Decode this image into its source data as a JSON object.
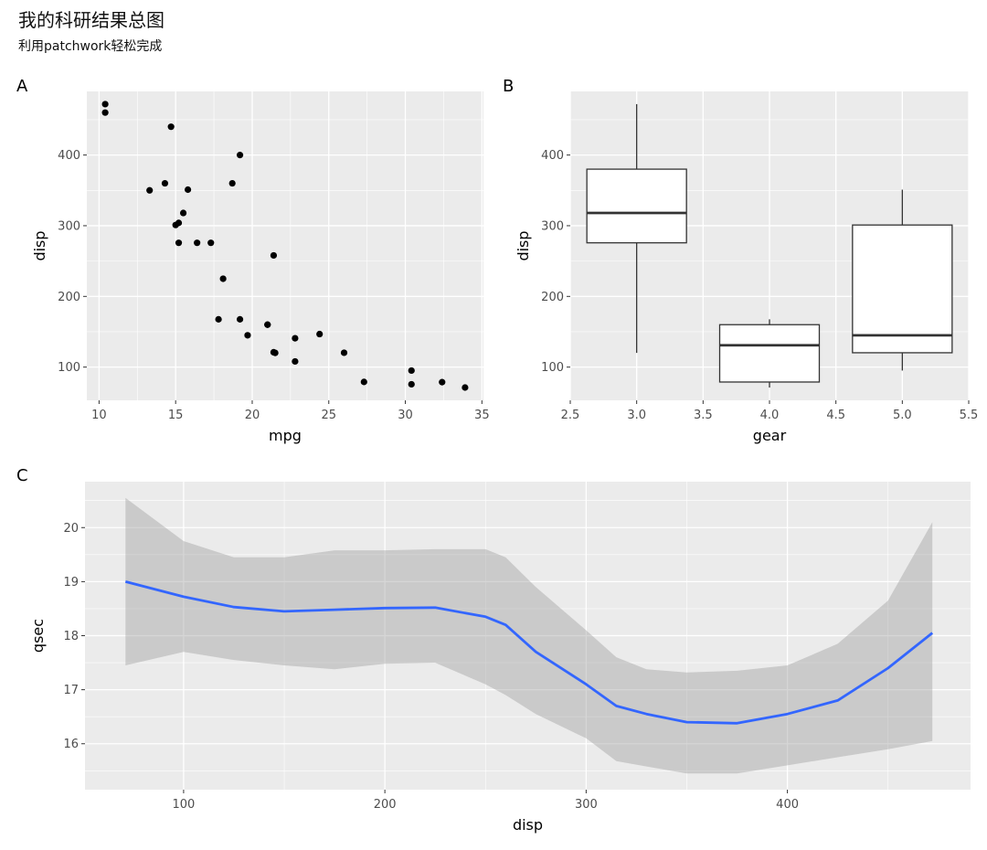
{
  "title": "我的科研结果总图",
  "subtitle": "利用patchwork轻松完成",
  "chart_data": [
    {
      "tag": "A",
      "type": "scatter",
      "xlabel": "mpg",
      "ylabel": "disp",
      "xlim": [
        9.2,
        35.1
      ],
      "ylim": [
        53,
        490
      ],
      "xticks": [
        10,
        15,
        20,
        25,
        30,
        35
      ],
      "yticks": [
        100,
        200,
        300,
        400
      ],
      "points": [
        {
          "x": 21.0,
          "y": 160
        },
        {
          "x": 21.0,
          "y": 160
        },
        {
          "x": 22.8,
          "y": 108
        },
        {
          "x": 21.4,
          "y": 258
        },
        {
          "x": 18.7,
          "y": 360
        },
        {
          "x": 18.1,
          "y": 225
        },
        {
          "x": 14.3,
          "y": 360
        },
        {
          "x": 24.4,
          "y": 146.7
        },
        {
          "x": 22.8,
          "y": 140.8
        },
        {
          "x": 19.2,
          "y": 167.6
        },
        {
          "x": 17.8,
          "y": 167.6
        },
        {
          "x": 16.4,
          "y": 275.8
        },
        {
          "x": 17.3,
          "y": 275.8
        },
        {
          "x": 15.2,
          "y": 275.8
        },
        {
          "x": 10.4,
          "y": 472
        },
        {
          "x": 10.4,
          "y": 460
        },
        {
          "x": 14.7,
          "y": 440
        },
        {
          "x": 32.4,
          "y": 78.7
        },
        {
          "x": 30.4,
          "y": 75.7
        },
        {
          "x": 33.9,
          "y": 71.1
        },
        {
          "x": 21.5,
          "y": 120.1
        },
        {
          "x": 15.5,
          "y": 318
        },
        {
          "x": 15.2,
          "y": 304
        },
        {
          "x": 13.3,
          "y": 350
        },
        {
          "x": 19.2,
          "y": 400
        },
        {
          "x": 27.3,
          "y": 79
        },
        {
          "x": 26.0,
          "y": 120.3
        },
        {
          "x": 30.4,
          "y": 95.1
        },
        {
          "x": 15.8,
          "y": 351
        },
        {
          "x": 19.7,
          "y": 145
        },
        {
          "x": 15.0,
          "y": 301
        },
        {
          "x": 21.4,
          "y": 121
        }
      ]
    },
    {
      "tag": "B",
      "type": "box",
      "xlabel": "gear",
      "ylabel": "disp",
      "xlim": [
        2.5,
        5.5
      ],
      "ylim": [
        53,
        490
      ],
      "xticks": [
        2.5,
        3.0,
        3.5,
        4.0,
        4.5,
        5.0,
        5.5
      ],
      "xtick_labels": [
        "2.5",
        "3.0",
        "3.5",
        "4.0",
        "4.5",
        "5.0",
        "5.5"
      ],
      "yticks": [
        100,
        200,
        300,
        400
      ],
      "boxes": [
        {
          "x": 3,
          "min": 120.1,
          "q1": 275.8,
          "median": 318,
          "q3": 380,
          "max": 472
        },
        {
          "x": 4,
          "min": 71.1,
          "q1": 78.9,
          "median": 130.9,
          "q3": 160,
          "max": 167.6
        },
        {
          "x": 5,
          "min": 95.1,
          "q1": 120.3,
          "median": 145,
          "q3": 301,
          "max": 351
        }
      ]
    },
    {
      "tag": "C",
      "type": "line",
      "xlabel": "disp",
      "ylabel": "qsec",
      "xlim": [
        51,
        491
      ],
      "ylim": [
        15.15,
        20.85
      ],
      "xticks": [
        100,
        200,
        300,
        400
      ],
      "yticks": [
        16,
        17,
        18,
        19,
        20
      ],
      "smooth": {
        "x": [
          71.1,
          100,
          125,
          150,
          175,
          200,
          225,
          250,
          260,
          275,
          300,
          315,
          330,
          350,
          375,
          400,
          425,
          450,
          472
        ],
        "y": [
          19.0,
          18.72,
          18.53,
          18.45,
          18.48,
          18.51,
          18.52,
          18.35,
          18.2,
          17.7,
          17.1,
          16.7,
          16.55,
          16.4,
          16.38,
          16.55,
          16.8,
          17.4,
          18.05
        ],
        "lower": [
          17.45,
          17.7,
          17.55,
          17.45,
          17.38,
          17.48,
          17.5,
          17.1,
          16.9,
          16.55,
          16.1,
          15.68,
          15.58,
          15.45,
          15.45,
          15.6,
          15.75,
          15.9,
          16.05
        ],
        "upper": [
          20.55,
          19.75,
          19.45,
          19.45,
          19.58,
          19.58,
          19.6,
          19.6,
          19.45,
          18.9,
          18.1,
          17.6,
          17.38,
          17.32,
          17.35,
          17.45,
          17.85,
          18.65,
          20.1
        ]
      }
    }
  ]
}
